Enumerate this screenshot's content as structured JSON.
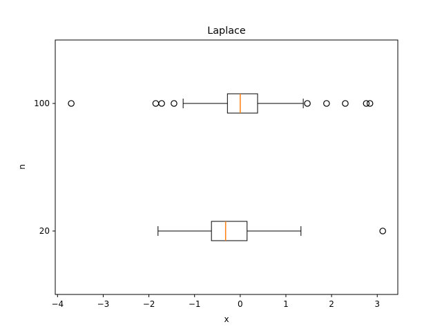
{
  "chart_data": {
    "type": "boxplot",
    "orientation": "horizontal",
    "title": "Laplace",
    "xlabel": "x",
    "ylabel": "n",
    "xlim": [
      -4.05,
      3.45
    ],
    "x_ticks": [
      -4,
      -3,
      -2,
      -1,
      0,
      1,
      2,
      3
    ],
    "x_tick_labels": [
      "−4",
      "−3",
      "−2",
      "−1",
      "0",
      "1",
      "2",
      "3"
    ],
    "categories": [
      "20",
      "100"
    ],
    "boxes": [
      {
        "label": "20",
        "whisker_low": -1.8,
        "q1": -0.63,
        "median": -0.32,
        "q3": 0.15,
        "whisker_high": 1.33,
        "outliers": [
          3.12
        ]
      },
      {
        "label": "100",
        "whisker_low": -1.25,
        "q1": -0.28,
        "median": 0.0,
        "q3": 0.38,
        "whisker_high": 1.38,
        "outliers": [
          -3.7,
          -1.85,
          -1.72,
          -1.45,
          1.47,
          1.89,
          2.3,
          2.76,
          2.84
        ]
      }
    ],
    "grid": false,
    "colors": {
      "box": "#000000",
      "median": "#ff7f0e",
      "outlier_edge": "#000000"
    }
  }
}
